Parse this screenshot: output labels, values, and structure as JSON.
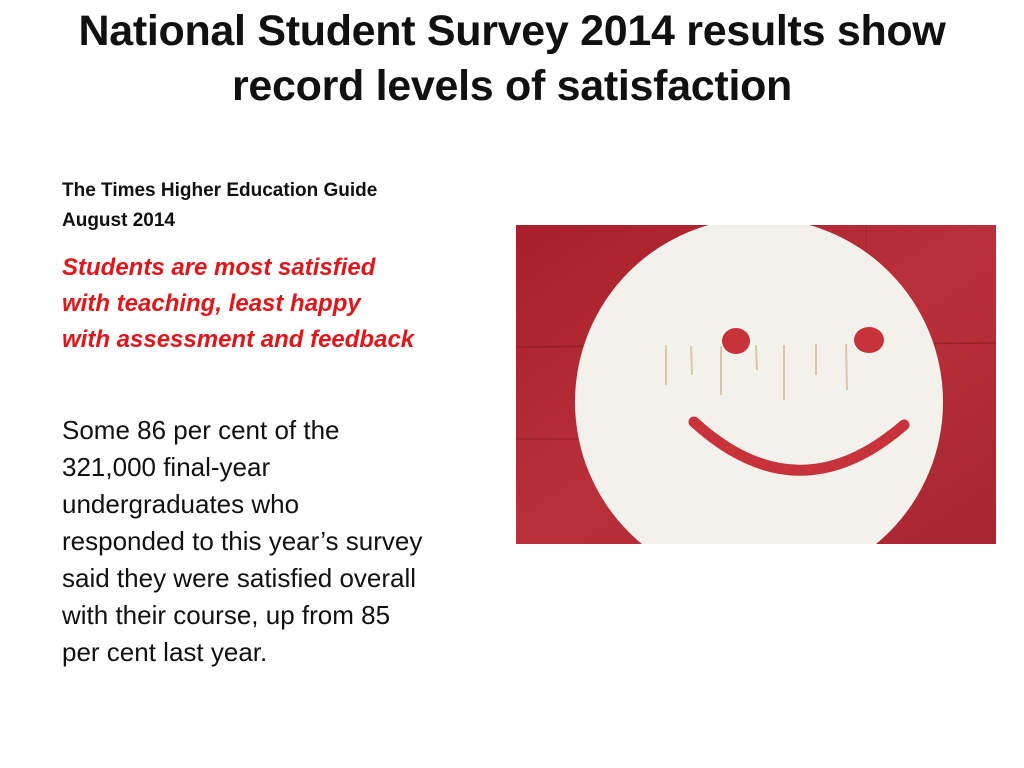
{
  "slide": {
    "title": "National Student Survey 2014 results show record levels of satisfaction",
    "source_line1": "The Times Higher Education Guide",
    "source_line2": "August 2014",
    "subhead": "Students are most satisfied\nwith teaching, least happy\nwith assessment and feedback",
    "body": "Some 86 per cent of the\n321,000 final-year\nundergraduates who\nresponded to this year’s survey\nsaid they were satisfied overall\nwith their course, up from 85\nper cent last year."
  },
  "photo": {
    "subject": "smiley-face",
    "background_color": "#b5262f",
    "face_color": "#f3f1ec",
    "feature_color": "#c8323a"
  },
  "colors": {
    "subhead": "#e0161b",
    "text": "#111111",
    "background": "#ffffff"
  }
}
